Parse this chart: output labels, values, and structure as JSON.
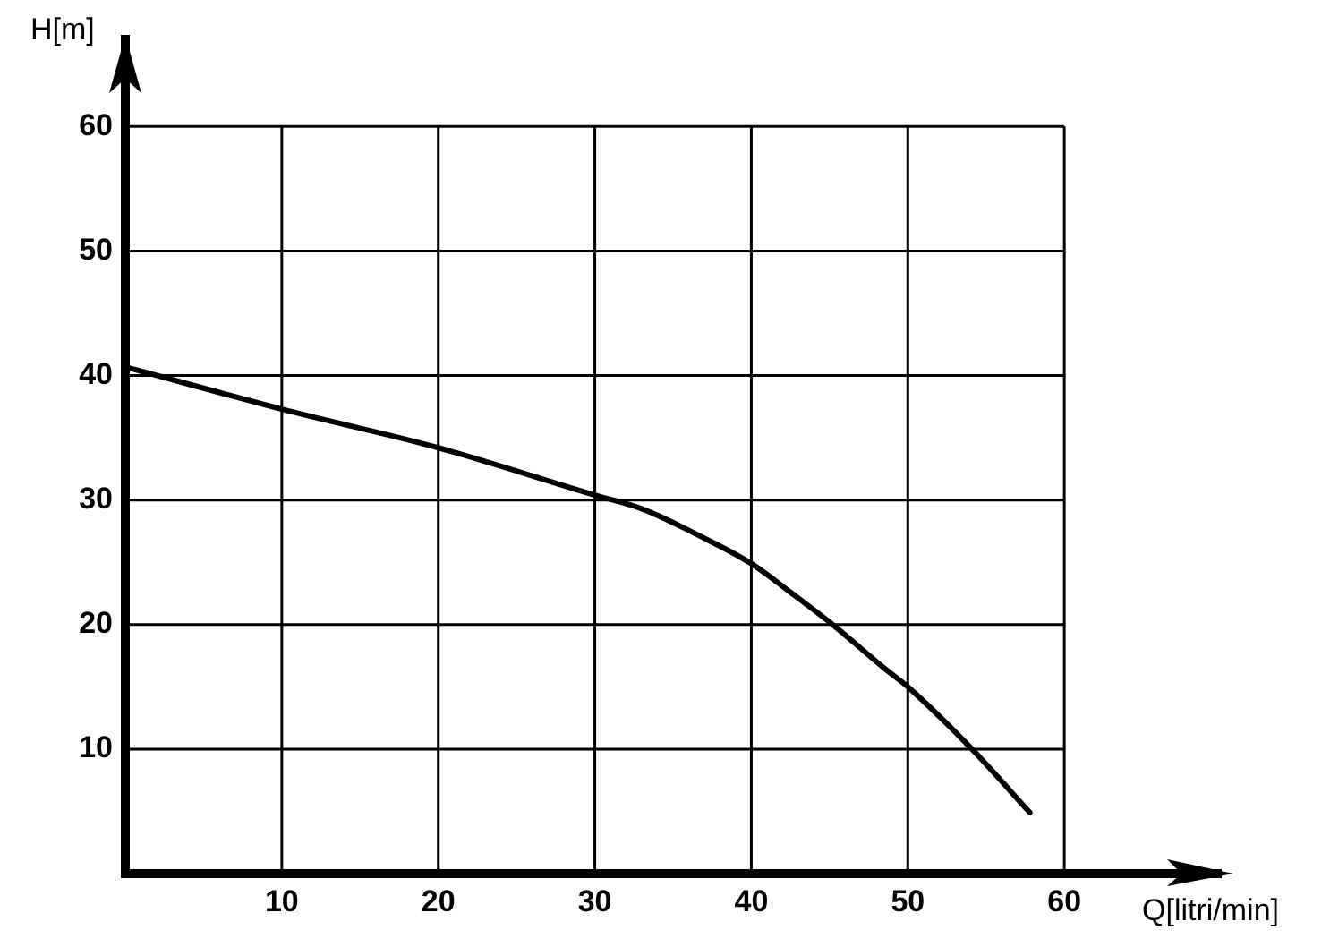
{
  "chart_data": {
    "type": "line",
    "xlabel": "Q[litri/min]",
    "ylabel": "H[m]",
    "x": [
      0,
      10,
      20,
      30,
      33,
      36.9,
      40,
      42.6,
      45.2,
      48.4,
      50,
      54.1,
      57.8
    ],
    "values": [
      40.7,
      37.3,
      34.2,
      30.4,
      29.3,
      27,
      24.9,
      22.5,
      20,
      16.6,
      15,
      10,
      4.9
    ],
    "color": "#000000",
    "marker": "none",
    "line_style": "solid",
    "xlim": [
      0,
      70
    ],
    "ylim": [
      0,
      67
    ],
    "xticks": [
      10,
      20,
      30,
      40,
      50,
      60
    ],
    "yticks": [
      10,
      20,
      30,
      40,
      50,
      60
    ],
    "grid": true,
    "legend": false
  }
}
